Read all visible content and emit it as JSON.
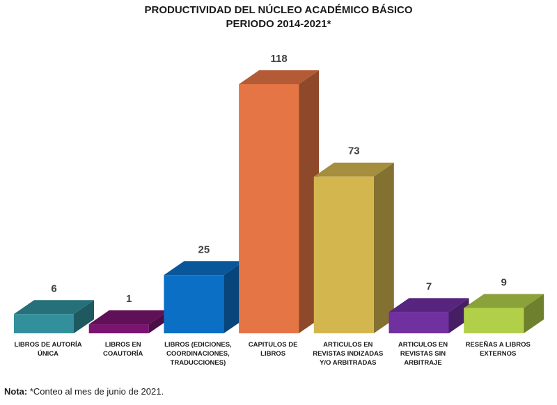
{
  "chart_data": {
    "type": "bar",
    "title": [
      "PRODUCTIVIDAD DEL NÚCLEO ACADÉMICO BÁSICO",
      "PERIODO 2014-2021*"
    ],
    "categories": [
      [
        "LIBROS DE AUTORÍA",
        "ÚNICA"
      ],
      [
        "LIBROS EN",
        "COAUTORÍA"
      ],
      [
        "LIBROS (EDICIONES,",
        "COORDINACIONES,",
        "TRADUCCIONES)"
      ],
      [
        "CAPITULOS DE",
        "LIBROS"
      ],
      [
        "ARTICULOS EN",
        "REVISTAS INDIZADAS",
        "Y/O ARBITRADAS"
      ],
      [
        "ARTICULOS EN",
        "REVISTAS SIN",
        "ARBITRAJE"
      ],
      [
        "RESEÑAS A LIBROS",
        "EXTERNOS"
      ]
    ],
    "values": [
      6,
      1,
      25,
      118,
      73,
      7,
      9
    ],
    "colors": [
      "#31909b",
      "#7a1470",
      "#0b6fc6",
      "#e57545",
      "#d4b64f",
      "#7030a0",
      "#b2cf49"
    ],
    "ylim": [
      0,
      118
    ],
    "grid": false,
    "legend": "none",
    "xlabel": "",
    "ylabel": ""
  },
  "note": {
    "label": "Nota:",
    "text": " *Conteo al mes de junio de 2021."
  }
}
